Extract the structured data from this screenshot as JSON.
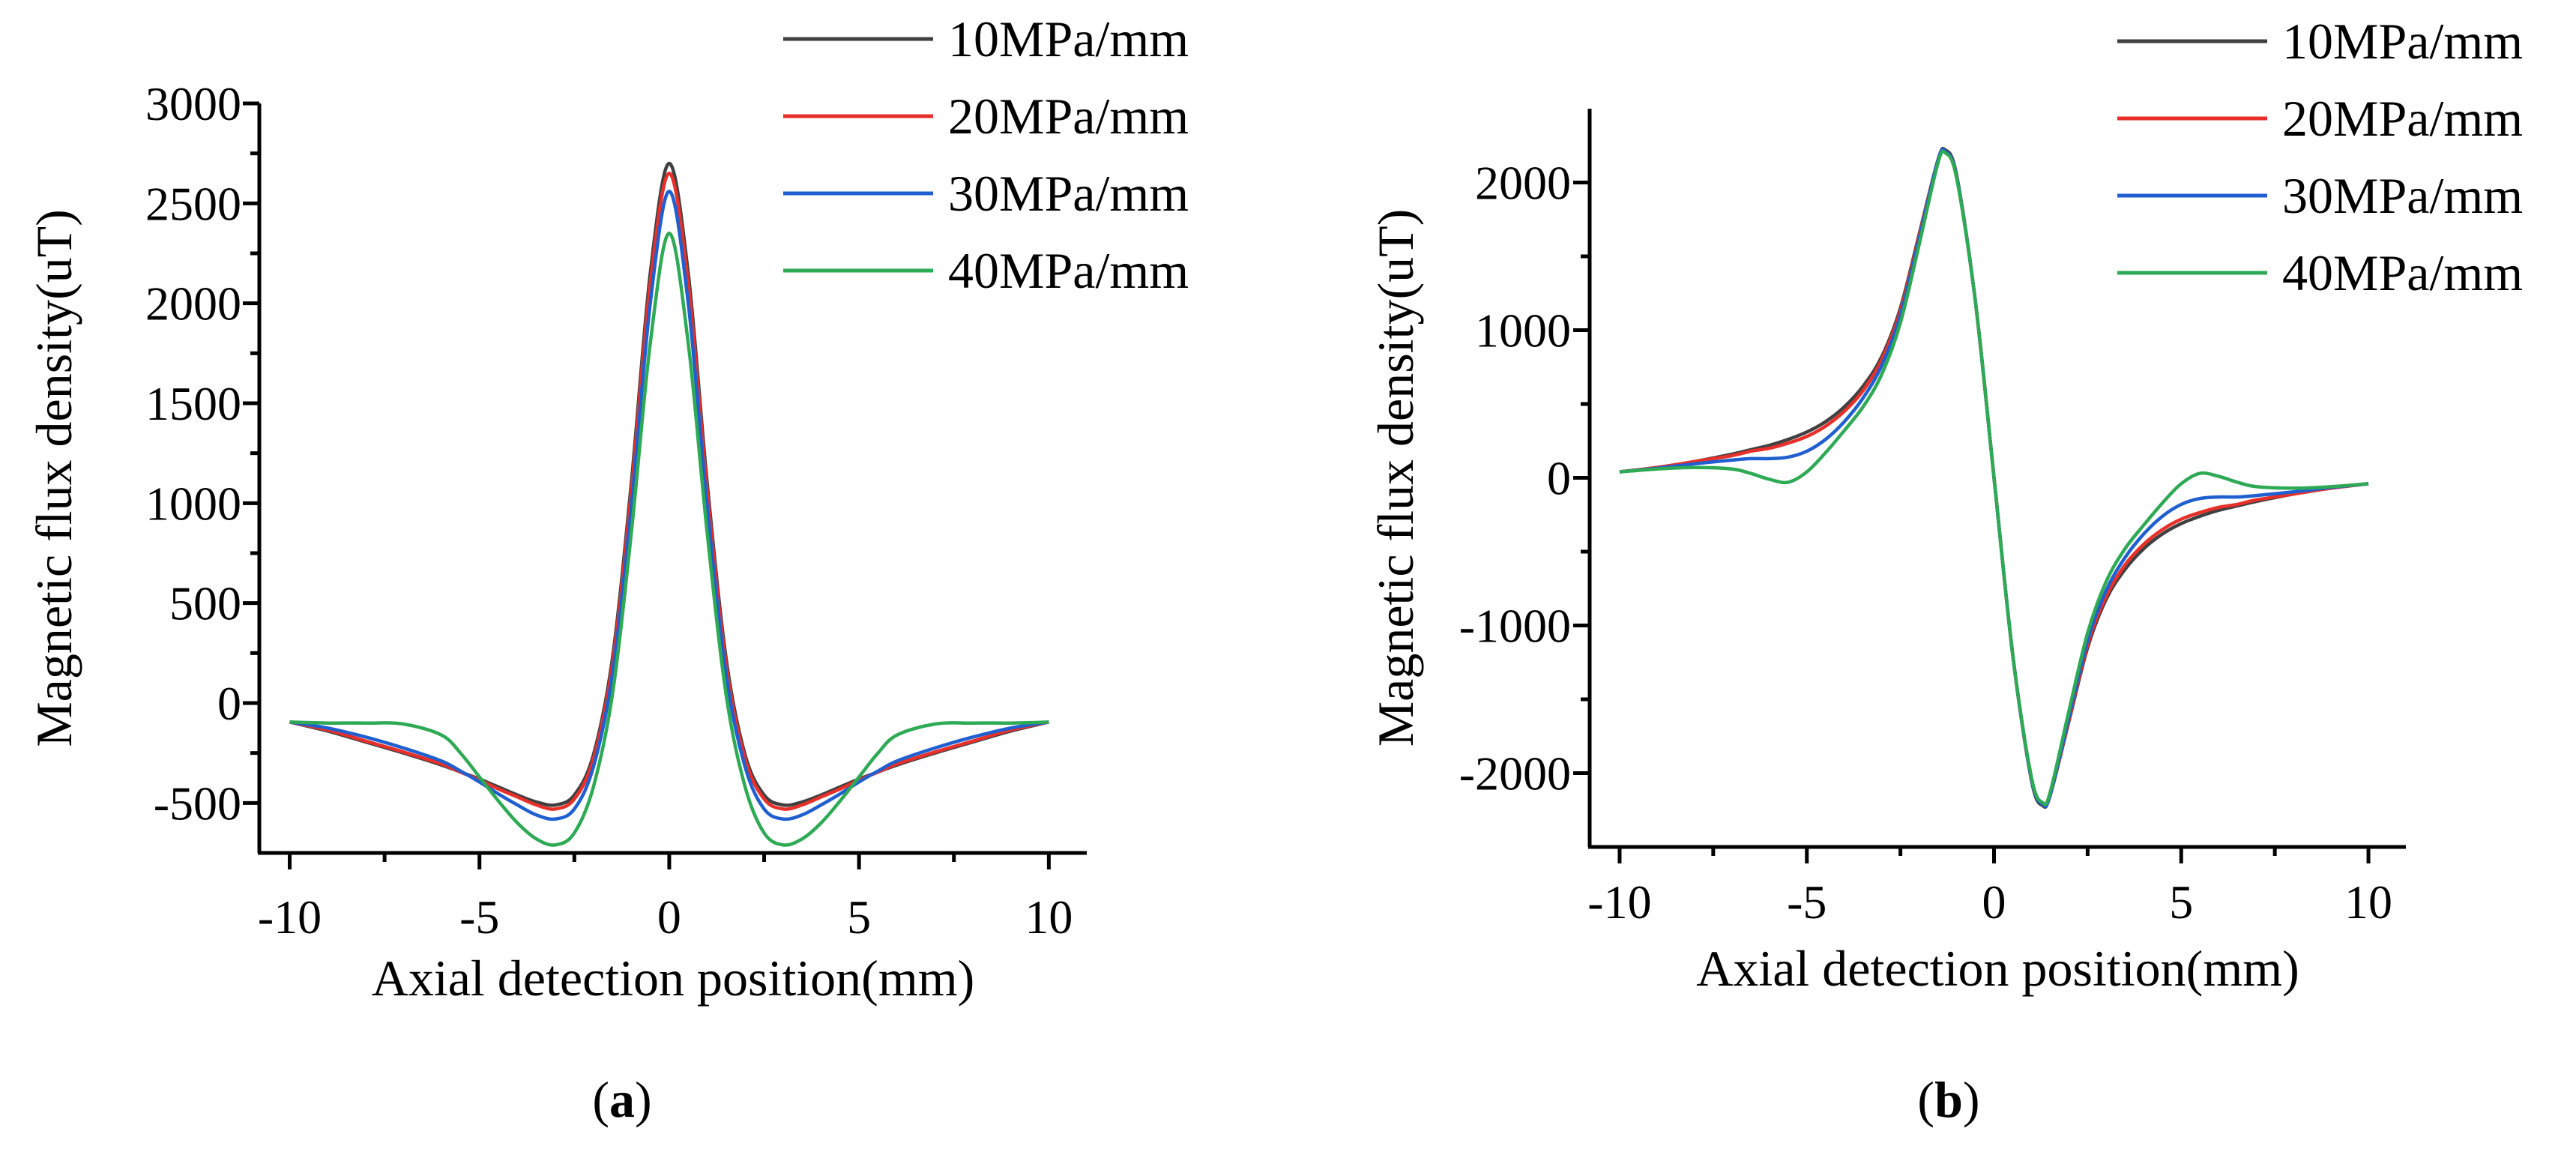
{
  "chart_data": [
    {
      "id": "a",
      "type": "line",
      "caption_letter": "a",
      "caption_open": "(",
      "caption_close": ")",
      "xlabel": "Axial detection position(mm)",
      "ylabel": "Magnetic flux density(uT)",
      "xlim": [
        -10.8,
        11
      ],
      "ylim": [
        -750,
        3000
      ],
      "xticks": [
        -10,
        -5,
        0,
        5,
        10
      ],
      "xtick_labels": [
        "-10",
        "-5",
        "0",
        "5",
        "10"
      ],
      "yticks": [
        -500,
        0,
        500,
        1000,
        1500,
        2000,
        2500,
        3000
      ],
      "ytick_labels": [
        "-500",
        "0",
        "500",
        "1000",
        "1500",
        "2000",
        "2500",
        "3000"
      ],
      "grid": false,
      "legend_position": "top-right",
      "x": [
        -10,
        -9,
        -8,
        -7,
        -6,
        -5.5,
        -5,
        -4.5,
        -4,
        -3.5,
        -3,
        -2.5,
        -2,
        -1.5,
        -1,
        -0.5,
        0,
        0.5,
        1,
        1.5,
        2,
        2.5,
        3,
        3.5,
        4,
        4.5,
        5,
        5.5,
        6,
        7,
        8,
        9,
        10
      ],
      "series": [
        {
          "name": "10MPa/mm",
          "color": "#404040",
          "values": [
            -95,
            -140,
            -195,
            -250,
            -310,
            -345,
            -380,
            -420,
            -460,
            -495,
            -510,
            -460,
            -260,
            220,
            1100,
            2150,
            2700,
            2150,
            1100,
            220,
            -260,
            -460,
            -510,
            -495,
            -460,
            -420,
            -380,
            -345,
            -310,
            -250,
            -195,
            -140,
            -95
          ]
        },
        {
          "name": "20MPa/mm",
          "color": "#e8302a",
          "values": [
            -95,
            -135,
            -190,
            -245,
            -305,
            -345,
            -385,
            -430,
            -470,
            -510,
            -530,
            -480,
            -280,
            190,
            1060,
            2100,
            2650,
            2100,
            1060,
            190,
            -280,
            -480,
            -530,
            -510,
            -470,
            -430,
            -385,
            -345,
            -305,
            -245,
            -190,
            -135,
            -95
          ]
        },
        {
          "name": "30MPa/mm",
          "color": "#1f5fcf",
          "values": [
            -95,
            -125,
            -170,
            -225,
            -290,
            -340,
            -395,
            -455,
            -510,
            -560,
            -580,
            -530,
            -320,
            140,
            980,
            2000,
            2560,
            2000,
            980,
            140,
            -320,
            -530,
            -580,
            -560,
            -510,
            -455,
            -395,
            -340,
            -290,
            -225,
            -170,
            -125,
            -95
          ]
        },
        {
          "name": "40MPa/mm",
          "color": "#2eaa55",
          "values": [
            -95,
            -100,
            -100,
            -105,
            -160,
            -250,
            -370,
            -490,
            -600,
            -680,
            -710,
            -650,
            -420,
            40,
            850,
            1800,
            2350,
            1800,
            850,
            40,
            -420,
            -650,
            -710,
            -680,
            -600,
            -490,
            -370,
            -250,
            -160,
            -105,
            -100,
            -100,
            -95
          ]
        }
      ]
    },
    {
      "id": "b",
      "type": "line",
      "caption_letter": "b",
      "caption_open": "(",
      "caption_close": ")",
      "xlabel": "Axial detection position(mm)",
      "ylabel": "Magnetic flux density(uT)",
      "xlim": [
        -10.8,
        11
      ],
      "ylim": [
        -2500,
        2500
      ],
      "xticks": [
        -10,
        -5,
        0,
        5,
        10
      ],
      "xtick_labels": [
        "-10",
        "-5",
        "0",
        "5",
        "10"
      ],
      "yticks": [
        -2000,
        -1000,
        0,
        1000,
        2000
      ],
      "ytick_labels": [
        "-2000",
        "-1000",
        "0",
        "1000",
        "2000"
      ],
      "grid": false,
      "legend_position": "top-right",
      "x": [
        -10,
        -9,
        -8,
        -7,
        -6.5,
        -6,
        -5.5,
        -5,
        -4.5,
        -4,
        -3.5,
        -3,
        -2.5,
        -2,
        -1.5,
        -1.3,
        -1,
        -0.5,
        0,
        0.5,
        1,
        1.3,
        1.5,
        2,
        2.5,
        3,
        3.5,
        4,
        4.5,
        5,
        5.5,
        6,
        6.5,
        7,
        8,
        9,
        10
      ],
      "series": [
        {
          "name": "10MPa/mm",
          "color": "#404040",
          "values": [
            40,
            70,
            110,
            160,
            190,
            220,
            260,
            310,
            380,
            480,
            620,
            820,
            1150,
            1650,
            2150,
            2220,
            2050,
            1200,
            0,
            -1200,
            -2050,
            -2220,
            -2150,
            -1650,
            -1150,
            -820,
            -620,
            -480,
            -380,
            -310,
            -260,
            -220,
            -190,
            -160,
            -110,
            -70,
            -40
          ]
        },
        {
          "name": "20MPa/mm",
          "color": "#e8302a",
          "values": [
            40,
            70,
            110,
            150,
            180,
            200,
            235,
            280,
            350,
            450,
            590,
            800,
            1130,
            1640,
            2150,
            2210,
            2040,
            1200,
            0,
            -1200,
            -2040,
            -2210,
            -2150,
            -1640,
            -1130,
            -800,
            -590,
            -450,
            -350,
            -280,
            -235,
            -200,
            -180,
            -150,
            -110,
            -70,
            -40
          ]
        },
        {
          "name": "30MPa/mm",
          "color": "#1f5fcf",
          "values": [
            40,
            65,
            95,
            120,
            130,
            130,
            140,
            180,
            260,
            380,
            540,
            760,
            1100,
            1620,
            2150,
            2210,
            2040,
            1200,
            0,
            -1200,
            -2040,
            -2210,
            -2150,
            -1620,
            -1100,
            -760,
            -540,
            -380,
            -260,
            -180,
            -140,
            -130,
            -130,
            -120,
            -95,
            -65,
            -40
          ]
        },
        {
          "name": "40MPa/mm",
          "color": "#2eaa55",
          "values": [
            40,
            60,
            70,
            60,
            30,
            -10,
            -30,
            40,
            170,
            320,
            480,
            700,
            1050,
            1580,
            2130,
            2200,
            2030,
            1200,
            0,
            -1200,
            -2030,
            -2200,
            -2130,
            -1580,
            -1050,
            -700,
            -480,
            -320,
            -170,
            -40,
            30,
            10,
            -30,
            -60,
            -70,
            -60,
            -40
          ]
        }
      ]
    }
  ]
}
